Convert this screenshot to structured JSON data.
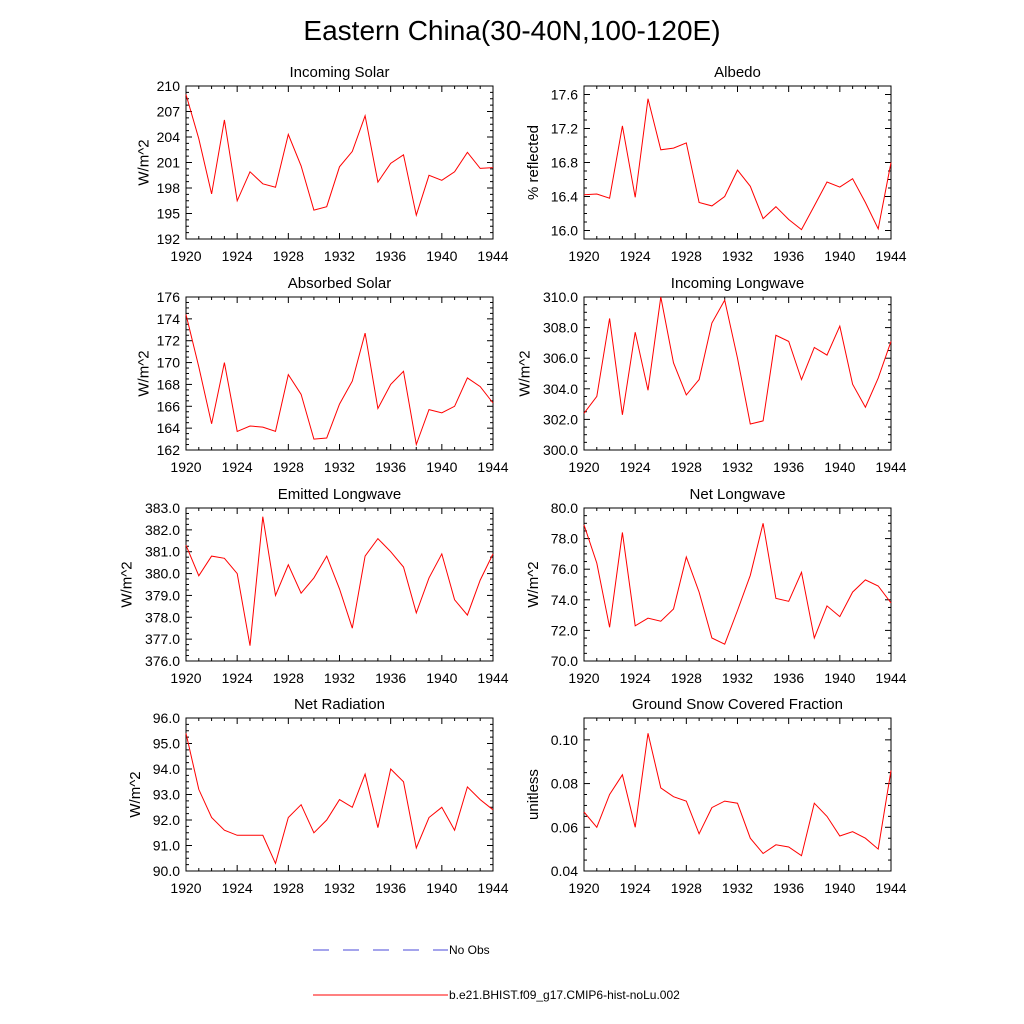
{
  "title": "Eastern China(30-40N,100-120E)",
  "legend": {
    "obs_label": "No Obs",
    "model_label": "b.e21.BHIST.f09_g17.CMIP6-hist-noLu.002",
    "obs_color": "#4a4ad8",
    "model_color": "#ff0000"
  },
  "chart_data": [
    {
      "type": "line",
      "title": "Incoming Solar",
      "ylabel": "W/m^2",
      "xlim": [
        1920,
        1944
      ],
      "ylim": [
        192,
        210
      ],
      "xticks": [
        "1920",
        "1924",
        "1928",
        "1932",
        "1936",
        "1940",
        "1944"
      ],
      "yticks": [
        "192",
        "195",
        "198",
        "201",
        "204",
        "207",
        "210"
      ],
      "series": [
        {
          "color": "#ff0000",
          "x": [
            1920,
            1921,
            1922,
            1923,
            1924,
            1925,
            1926,
            1927,
            1928,
            1929,
            1930,
            1931,
            1932,
            1933,
            1934,
            1935,
            1936,
            1937,
            1938,
            1939,
            1940,
            1941,
            1942,
            1943,
            1944
          ],
          "y": [
            209.0,
            203.8,
            197.3,
            206.0,
            196.5,
            199.9,
            198.5,
            198.1,
            204.3,
            200.6,
            195.4,
            195.8,
            200.5,
            202.3,
            206.5,
            198.7,
            200.9,
            201.9,
            194.8,
            199.5,
            198.9,
            199.9,
            202.2,
            200.3,
            200.4
          ]
        }
      ]
    },
    {
      "type": "line",
      "title": "Albedo",
      "ylabel": "% reflected",
      "xlim": [
        1920,
        1944
      ],
      "ylim": [
        15.9,
        17.7
      ],
      "xticks": [
        "1920",
        "1924",
        "1928",
        "1932",
        "1936",
        "1940",
        "1944"
      ],
      "yticks": [
        "16.0",
        "16.4",
        "16.8",
        "17.2",
        "17.6"
      ],
      "series": [
        {
          "color": "#ff0000",
          "x": [
            1920,
            1921,
            1922,
            1923,
            1924,
            1925,
            1926,
            1927,
            1928,
            1929,
            1930,
            1931,
            1932,
            1933,
            1934,
            1935,
            1936,
            1937,
            1938,
            1939,
            1940,
            1941,
            1942,
            1943,
            1944
          ],
          "y": [
            16.42,
            16.43,
            16.38,
            17.23,
            16.39,
            17.55,
            16.95,
            16.97,
            17.03,
            16.33,
            16.29,
            16.4,
            16.71,
            16.52,
            16.14,
            16.28,
            16.13,
            16.01,
            16.29,
            16.57,
            16.51,
            16.61,
            16.33,
            16.02,
            16.8
          ]
        }
      ]
    },
    {
      "type": "line",
      "title": "Absorbed Solar",
      "ylabel": "W/m^2",
      "xlim": [
        1920,
        1944
      ],
      "ylim": [
        162,
        176
      ],
      "xticks": [
        "1920",
        "1924",
        "1928",
        "1932",
        "1936",
        "1940",
        "1944"
      ],
      "yticks": [
        "162",
        "164",
        "166",
        "168",
        "170",
        "172",
        "174",
        "176"
      ],
      "series": [
        {
          "color": "#ff0000",
          "x": [
            1920,
            1921,
            1922,
            1923,
            1924,
            1925,
            1926,
            1927,
            1928,
            1929,
            1930,
            1931,
            1932,
            1933,
            1934,
            1935,
            1936,
            1937,
            1938,
            1939,
            1940,
            1941,
            1942,
            1943,
            1944
          ],
          "y": [
            174.4,
            169.6,
            164.4,
            170.0,
            163.7,
            164.2,
            164.1,
            163.7,
            168.9,
            167.1,
            163.0,
            163.1,
            166.2,
            168.3,
            172.7,
            165.8,
            168.0,
            169.2,
            162.5,
            165.7,
            165.4,
            166.0,
            168.6,
            167.8,
            166.3
          ]
        }
      ]
    },
    {
      "type": "line",
      "title": "Incoming Longwave",
      "ylabel": "W/m^2",
      "xlim": [
        1920,
        1944
      ],
      "ylim": [
        300.0,
        310.0
      ],
      "xticks": [
        "1920",
        "1924",
        "1928",
        "1932",
        "1936",
        "1940",
        "1944"
      ],
      "yticks": [
        "300.0",
        "302.0",
        "304.0",
        "306.0",
        "308.0",
        "310.0"
      ],
      "series": [
        {
          "color": "#ff0000",
          "x": [
            1920,
            1921,
            1922,
            1923,
            1924,
            1925,
            1926,
            1927,
            1928,
            1929,
            1930,
            1931,
            1932,
            1933,
            1934,
            1935,
            1936,
            1937,
            1938,
            1939,
            1940,
            1941,
            1942,
            1943,
            1944
          ],
          "y": [
            302.4,
            303.5,
            308.6,
            302.3,
            307.7,
            303.9,
            310.0,
            305.7,
            303.6,
            304.6,
            308.3,
            309.8,
            306.0,
            301.7,
            301.9,
            307.5,
            307.1,
            304.6,
            306.7,
            306.2,
            308.1,
            304.3,
            302.8,
            304.7,
            307.1
          ]
        }
      ]
    },
    {
      "type": "line",
      "title": "Emitted Longwave",
      "ylabel": "W/m^2",
      "xlim": [
        1920,
        1944
      ],
      "ylim": [
        376.0,
        383.0
      ],
      "xticks": [
        "1920",
        "1924",
        "1928",
        "1932",
        "1936",
        "1940",
        "1944"
      ],
      "yticks": [
        "376.0",
        "377.0",
        "378.0",
        "379.0",
        "380.0",
        "381.0",
        "382.0",
        "383.0"
      ],
      "series": [
        {
          "color": "#ff0000",
          "x": [
            1920,
            1921,
            1922,
            1923,
            1924,
            1925,
            1926,
            1927,
            1928,
            1929,
            1930,
            1931,
            1932,
            1933,
            1934,
            1935,
            1936,
            1937,
            1938,
            1939,
            1940,
            1941,
            1942,
            1943,
            1944
          ],
          "y": [
            381.3,
            379.9,
            380.8,
            380.7,
            380.0,
            376.7,
            382.6,
            379.0,
            380.4,
            379.1,
            379.8,
            380.8,
            379.3,
            377.5,
            380.8,
            381.6,
            381.0,
            380.3,
            378.2,
            379.8,
            380.9,
            378.8,
            378.1,
            379.7,
            380.9
          ]
        }
      ]
    },
    {
      "type": "line",
      "title": "Net Longwave",
      "ylabel": "W/m^2",
      "xlim": [
        1920,
        1944
      ],
      "ylim": [
        70.0,
        80.0
      ],
      "xticks": [
        "1920",
        "1924",
        "1928",
        "1932",
        "1936",
        "1940",
        "1944"
      ],
      "yticks": [
        "70.0",
        "72.0",
        "74.0",
        "76.0",
        "78.0",
        "80.0"
      ],
      "series": [
        {
          "color": "#ff0000",
          "x": [
            1920,
            1921,
            1922,
            1923,
            1924,
            1925,
            1926,
            1927,
            1928,
            1929,
            1930,
            1931,
            1932,
            1933,
            1934,
            1935,
            1936,
            1937,
            1938,
            1939,
            1940,
            1941,
            1942,
            1943,
            1944
          ],
          "y": [
            78.9,
            76.4,
            72.2,
            78.4,
            72.3,
            72.8,
            72.6,
            73.4,
            76.8,
            74.5,
            71.5,
            71.1,
            73.3,
            75.6,
            79.0,
            74.1,
            73.9,
            75.8,
            71.5,
            73.6,
            72.9,
            74.5,
            75.3,
            74.9,
            73.8
          ]
        }
      ]
    },
    {
      "type": "line",
      "title": "Net Radiation",
      "ylabel": "W/m^2",
      "xlim": [
        1920,
        1944
      ],
      "ylim": [
        90.0,
        96.0
      ],
      "xticks": [
        "1920",
        "1924",
        "1928",
        "1932",
        "1936",
        "1940",
        "1944"
      ],
      "yticks": [
        "90.0",
        "91.0",
        "92.0",
        "93.0",
        "94.0",
        "95.0",
        "96.0"
      ],
      "series": [
        {
          "color": "#ff0000",
          "x": [
            1920,
            1921,
            1922,
            1923,
            1924,
            1925,
            1926,
            1927,
            1928,
            1929,
            1930,
            1931,
            1932,
            1933,
            1934,
            1935,
            1936,
            1937,
            1938,
            1939,
            1940,
            1941,
            1942,
            1943,
            1944
          ],
          "y": [
            95.4,
            93.2,
            92.1,
            91.6,
            91.4,
            91.4,
            91.4,
            90.3,
            92.1,
            92.6,
            91.5,
            92.0,
            92.8,
            92.5,
            93.8,
            91.7,
            94.0,
            93.5,
            90.9,
            92.1,
            92.5,
            91.6,
            93.3,
            92.8,
            92.4
          ]
        }
      ]
    },
    {
      "type": "line",
      "title": "Ground Snow Covered Fraction",
      "ylabel": "unitless",
      "xlim": [
        1920,
        1944
      ],
      "ylim": [
        0.04,
        0.11
      ],
      "xticks": [
        "1920",
        "1924",
        "1928",
        "1932",
        "1936",
        "1940",
        "1944"
      ],
      "yticks": [
        "0.04",
        "0.06",
        "0.08",
        "0.10"
      ],
      "series": [
        {
          "color": "#ff0000",
          "x": [
            1920,
            1921,
            1922,
            1923,
            1924,
            1925,
            1926,
            1927,
            1928,
            1929,
            1930,
            1931,
            1932,
            1933,
            1934,
            1935,
            1936,
            1937,
            1938,
            1939,
            1940,
            1941,
            1942,
            1943,
            1944
          ],
          "y": [
            0.067,
            0.06,
            0.075,
            0.084,
            0.06,
            0.103,
            0.078,
            0.074,
            0.072,
            0.057,
            0.069,
            0.072,
            0.071,
            0.055,
            0.048,
            0.052,
            0.051,
            0.047,
            0.071,
            0.065,
            0.056,
            0.058,
            0.055,
            0.05,
            0.086
          ]
        }
      ]
    }
  ]
}
